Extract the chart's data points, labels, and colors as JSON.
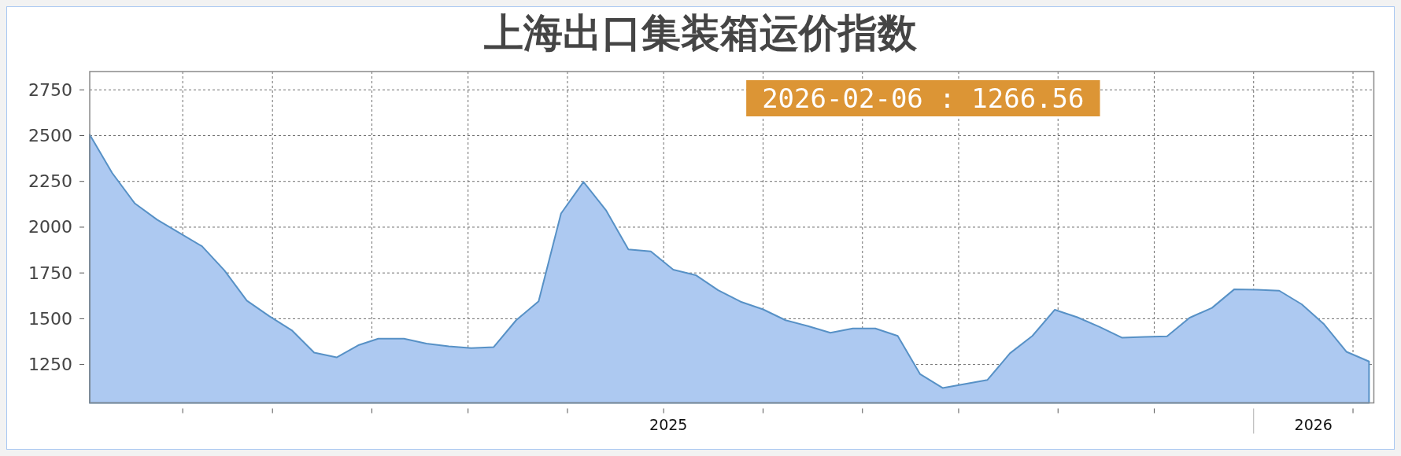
{
  "chart_data": {
    "type": "area",
    "title": "上海出口集装箱运价指数",
    "x": [
      "2025-01-03",
      "2025-01-10",
      "2025-01-17",
      "2025-01-24",
      "2025-02-07",
      "2025-02-14",
      "2025-02-21",
      "2025-02-28",
      "2025-03-07",
      "2025-03-14",
      "2025-03-21",
      "2025-03-28",
      "2025-04-03",
      "2025-04-11",
      "2025-04-18",
      "2025-04-25",
      "2025-05-02",
      "2025-05-09",
      "2025-05-16",
      "2025-05-23",
      "2025-05-30",
      "2025-06-06",
      "2025-06-13",
      "2025-06-20",
      "2025-06-27",
      "2025-07-04",
      "2025-07-11",
      "2025-07-18",
      "2025-07-25",
      "2025-08-01",
      "2025-08-08",
      "2025-08-15",
      "2025-08-22",
      "2025-08-29",
      "2025-09-05",
      "2025-09-12",
      "2025-09-19",
      "2025-09-26",
      "2025-10-10",
      "2025-10-17",
      "2025-10-24",
      "2025-10-31",
      "2025-11-07",
      "2025-11-14",
      "2025-11-21",
      "2025-11-28",
      "2025-12-05",
      "2025-12-12",
      "2025-12-19",
      "2025-12-26",
      "2026-01-02",
      "2026-01-09",
      "2026-01-16",
      "2026-01-23",
      "2026-01-30",
      "2026-02-06"
    ],
    "values": [
      2505,
      2296,
      2131,
      2041,
      1896,
      1764,
      1599,
      1514,
      1437,
      1315,
      1289,
      1357,
      1391,
      1391,
      1364,
      1349,
      1340,
      1345,
      1492,
      1595,
      2075,
      2247,
      2093,
      1878,
      1868,
      1768,
      1738,
      1656,
      1593,
      1551,
      1492,
      1460,
      1423,
      1447,
      1447,
      1406,
      1197,
      1122,
      1166,
      1311,
      1406,
      1549,
      1508,
      1455,
      1396,
      1401,
      1404,
      1505,
      1559,
      1661,
      1658,
      1653,
      1579,
      1469,
      1319,
      1266.56
    ],
    "color": "#adc9f1",
    "xlim": [
      "2025-01-03",
      "2026-02-07T12:00"
    ],
    "ylim": [
      1040,
      2850
    ],
    "yticks": [
      1250,
      1500,
      1750,
      2000,
      2250,
      2500,
      2750
    ],
    "xticks": [
      {
        "value": "2025-02-01",
        "label": null
      },
      {
        "value": "2025-03-01",
        "label": null
      },
      {
        "value": "2025-04-01",
        "label": null
      },
      {
        "value": "2025-05-01",
        "label": null
      },
      {
        "value": "2025-06-01",
        "label": null
      },
      {
        "value": "2025-07-01",
        "label": null
      },
      {
        "value": "2025-07-02T12:00",
        "label": "2025"
      },
      {
        "value": "2025-08-01",
        "label": null
      },
      {
        "value": "2025-09-01",
        "label": null
      },
      {
        "value": "2025-10-01",
        "label": null
      },
      {
        "value": "2025-11-01",
        "label": null
      },
      {
        "value": "2025-12-01",
        "label": null
      },
      {
        "value": "2026-01-01",
        "label": null
      },
      {
        "value": "2026-01-19T16:00",
        "label": "2026"
      },
      {
        "value": "2026-02-01",
        "label": null
      }
    ],
    "grid": true,
    "annotations": [
      "2026-02-06 : 1266.56"
    ]
  }
}
